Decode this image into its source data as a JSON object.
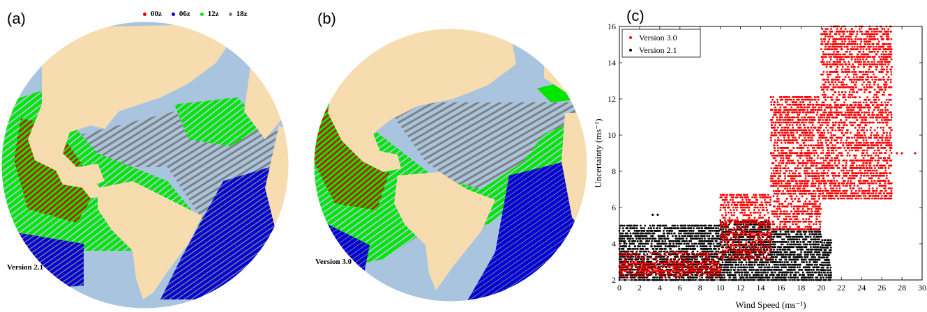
{
  "panels": {
    "a": {
      "label": "(a)",
      "version": "Version 2.1"
    },
    "b": {
      "label": "(b)",
      "version": "Version 3.0"
    },
    "c": {
      "label": "(c)"
    }
  },
  "map_legend": [
    {
      "label": "00z",
      "color": "#e60000"
    },
    {
      "label": "06z",
      "color": "#0000d8"
    },
    {
      "label": "12z",
      "color": "#00e600"
    },
    {
      "label": "18z",
      "color": "#808080"
    }
  ],
  "colors": {
    "ocean": "#a9c4de",
    "land": "#f7dcb0"
  },
  "chart_data": {
    "type": "scatter",
    "xlabel": "Wind Speed (ms⁻¹)",
    "ylabel": "Uncertainty (ms⁻¹)",
    "xlim": [
      0,
      30
    ],
    "ylim": [
      2,
      16
    ],
    "xticks": [
      "0",
      "2",
      "4",
      "6",
      "8",
      "10",
      "12",
      "14",
      "16",
      "18",
      "20",
      "22",
      "24",
      "26",
      "28",
      "30"
    ],
    "yticks": [
      "2",
      "4",
      "6",
      "8",
      "10",
      "12",
      "14",
      "16"
    ],
    "legend_position": "top-left",
    "series": [
      {
        "name": "Version 3.0",
        "color": "#ff0000",
        "bands": [
          {
            "x": [
              0,
              10
            ],
            "y": [
              2.2,
              3.5
            ]
          },
          {
            "x": [
              10,
              15
            ],
            "y": [
              3.2,
              6.7
            ]
          },
          {
            "x": [
              15,
              20
            ],
            "y": [
              4.8,
              12.1
            ]
          },
          {
            "x": [
              20,
              27
            ],
            "y": [
              6.5,
              16.0
            ]
          }
        ],
        "extra_points": [
          [
            29.3,
            9.0
          ],
          [
            28.0,
            9.0
          ],
          [
            27.5,
            9.0
          ]
        ]
      },
      {
        "name": "Version 2.1",
        "color": "#000000",
        "bands": [
          {
            "x": [
              0,
              10
            ],
            "y": [
              2.0,
              5.0
            ]
          },
          {
            "x": [
              10,
              15
            ],
            "y": [
              2.0,
              5.2
            ]
          },
          {
            "x": [
              15,
              20
            ],
            "y": [
              2.0,
              4.8
            ]
          },
          {
            "x": [
              20,
              21
            ],
            "y": [
              2.0,
              4.2
            ]
          }
        ],
        "extra_points": [
          [
            3.3,
            5.6
          ],
          [
            3.8,
            5.6
          ],
          [
            0.5,
            4.1
          ]
        ]
      }
    ]
  }
}
